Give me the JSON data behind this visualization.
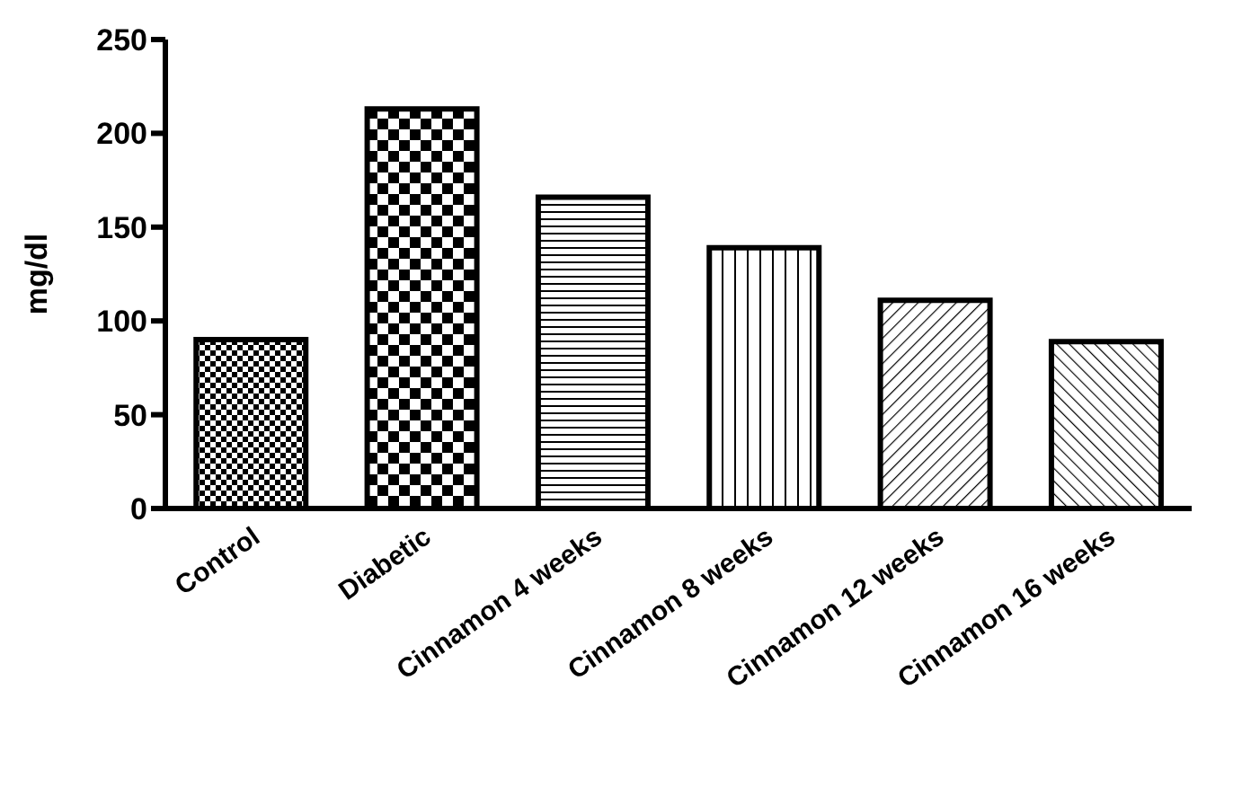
{
  "chart_data": {
    "type": "bar",
    "ylabel": "mg/dl",
    "categories": [
      "Control",
      "Diabetic",
      "Cinnamon 4 weeks",
      "Cinnamon 8 weeks",
      "Cinnamon 12 weeks",
      "Cinnamon 16 weeks"
    ],
    "values": [
      90,
      213,
      166,
      139,
      111,
      89
    ],
    "color": "#000000",
    "ylim": [
      0,
      250
    ],
    "yticks": [
      0,
      50,
      100,
      150,
      200,
      250
    ],
    "grid": false,
    "legend": false
  }
}
